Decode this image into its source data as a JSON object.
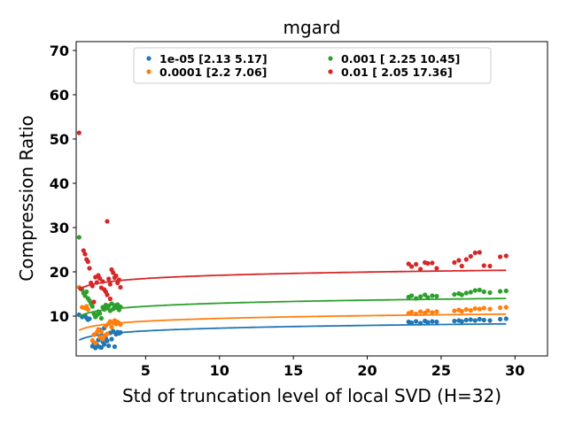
{
  "chart_data": {
    "type": "scatter",
    "title": "mgard",
    "xlabel": "Std of truncation level of local SVD (H=32)",
    "ylabel": "Compression Ratio",
    "xlim": [
      0.3,
      32.2
    ],
    "ylim": [
      1.0,
      72.0
    ],
    "xticks": [
      5,
      10,
      15,
      20,
      25,
      30
    ],
    "yticks": [
      10,
      20,
      30,
      40,
      50,
      60,
      70
    ],
    "grid": false,
    "legend_position": "top-center",
    "series": [
      {
        "name": "1e-05 [2.13 5.17]",
        "color": "#1f77b4",
        "fit": {
          "a": 5.2,
          "b": 0.9
        },
        "points": [
          [
            0.5,
            10.3
          ],
          [
            0.7,
            9.8
          ],
          [
            0.9,
            10.1
          ],
          [
            1.0,
            9.6
          ],
          [
            1.1,
            9.2
          ],
          [
            1.2,
            9.4
          ],
          [
            1.4,
            3.2
          ],
          [
            1.5,
            4.0
          ],
          [
            1.6,
            2.8
          ],
          [
            1.7,
            3.5
          ],
          [
            1.8,
            4.6
          ],
          [
            1.9,
            3.0
          ],
          [
            2.0,
            2.9
          ],
          [
            2.1,
            4.2
          ],
          [
            2.2,
            3.6
          ],
          [
            2.3,
            5.0
          ],
          [
            2.4,
            4.4
          ],
          [
            2.5,
            3.3
          ],
          [
            2.6,
            6.2
          ],
          [
            2.7,
            4.8
          ],
          [
            2.8,
            6.6
          ],
          [
            2.9,
            3.1
          ],
          [
            3.0,
            5.9
          ],
          [
            3.1,
            6.4
          ],
          [
            3.2,
            6.1
          ],
          [
            3.3,
            6.3
          ],
          [
            2.2,
            7.3
          ],
          [
            1.9,
            6.9
          ],
          [
            22.8,
            8.7
          ],
          [
            23.0,
            8.5
          ],
          [
            23.3,
            8.8
          ],
          [
            23.6,
            8.4
          ],
          [
            23.9,
            8.9
          ],
          [
            24.1,
            8.6
          ],
          [
            24.4,
            8.8
          ],
          [
            24.7,
            8.7
          ],
          [
            25.9,
            8.9
          ],
          [
            26.2,
            9.0
          ],
          [
            26.4,
            8.8
          ],
          [
            26.7,
            9.1
          ],
          [
            27.0,
            9.2
          ],
          [
            27.3,
            9.0
          ],
          [
            27.6,
            9.3
          ],
          [
            27.9,
            9.1
          ],
          [
            28.3,
            9.0
          ],
          [
            29.0,
            9.3
          ],
          [
            29.4,
            9.4
          ]
        ]
      },
      {
        "name": "0.0001 [2.2  7.06]",
        "color": "#ff7f0e",
        "fit": {
          "a": 7.4,
          "b": 0.9
        },
        "points": [
          [
            0.5,
            16.5
          ],
          [
            0.7,
            12.0
          ],
          [
            0.9,
            11.8
          ],
          [
            1.0,
            12.2
          ],
          [
            1.1,
            11.5
          ],
          [
            1.4,
            4.5
          ],
          [
            1.5,
            5.8
          ],
          [
            1.6,
            3.9
          ],
          [
            1.7,
            6.3
          ],
          [
            1.8,
            7.0
          ],
          [
            1.9,
            5.2
          ],
          [
            2.0,
            6.5
          ],
          [
            2.1,
            4.8
          ],
          [
            2.2,
            5.5
          ],
          [
            2.3,
            7.8
          ],
          [
            2.4,
            6.0
          ],
          [
            2.5,
            8.3
          ],
          [
            2.6,
            8.8
          ],
          [
            2.7,
            7.5
          ],
          [
            2.8,
            8.5
          ],
          [
            2.9,
            9.0
          ],
          [
            3.0,
            8.2
          ],
          [
            3.1,
            8.7
          ],
          [
            3.2,
            8.4
          ],
          [
            3.3,
            8.1
          ],
          [
            22.8,
            10.6
          ],
          [
            23.0,
            10.9
          ],
          [
            23.3,
            10.5
          ],
          [
            23.6,
            11.0
          ],
          [
            23.9,
            10.7
          ],
          [
            24.1,
            11.2
          ],
          [
            24.4,
            10.8
          ],
          [
            24.7,
            11.0
          ],
          [
            25.9,
            11.2
          ],
          [
            26.2,
            11.4
          ],
          [
            26.4,
            11.1
          ],
          [
            26.7,
            11.5
          ],
          [
            27.0,
            11.3
          ],
          [
            27.3,
            11.7
          ],
          [
            27.6,
            11.6
          ],
          [
            27.9,
            11.8
          ],
          [
            28.3,
            11.6
          ],
          [
            29.0,
            11.9
          ],
          [
            29.4,
            12.0
          ]
        ]
      },
      {
        "name": "0.001 [ 2.25 10.45]",
        "color": "#2ca02c",
        "fit": {
          "a": 10.6,
          "b": 1.0
        },
        "points": [
          [
            0.5,
            27.8
          ],
          [
            0.7,
            16.0
          ],
          [
            0.8,
            15.2
          ],
          [
            0.9,
            14.6
          ],
          [
            1.0,
            15.5
          ],
          [
            1.1,
            14.0
          ],
          [
            1.2,
            13.5
          ],
          [
            1.3,
            12.8
          ],
          [
            1.4,
            12.2
          ],
          [
            1.5,
            10.5
          ],
          [
            1.6,
            9.8
          ],
          [
            1.7,
            10.2
          ],
          [
            1.8,
            11.0
          ],
          [
            1.9,
            10.6
          ],
          [
            2.0,
            9.5
          ],
          [
            2.1,
            12.0
          ],
          [
            2.2,
            11.5
          ],
          [
            2.3,
            12.5
          ],
          [
            2.4,
            11.8
          ],
          [
            2.5,
            12.3
          ],
          [
            2.6,
            11.2
          ],
          [
            2.7,
            12.8
          ],
          [
            2.8,
            11.6
          ],
          [
            2.9,
            12.4
          ],
          [
            3.0,
            11.9
          ],
          [
            3.1,
            12.6
          ],
          [
            3.2,
            11.4
          ],
          [
            3.3,
            12.1
          ],
          [
            22.8,
            14.3
          ],
          [
            23.0,
            14.6
          ],
          [
            23.3,
            14.0
          ],
          [
            23.6,
            14.4
          ],
          [
            23.9,
            14.8
          ],
          [
            24.1,
            14.2
          ],
          [
            24.4,
            14.6
          ],
          [
            24.7,
            14.5
          ],
          [
            25.9,
            14.9
          ],
          [
            26.2,
            15.1
          ],
          [
            26.4,
            14.8
          ],
          [
            26.7,
            15.2
          ],
          [
            27.0,
            15.4
          ],
          [
            27.3,
            15.8
          ],
          [
            27.6,
            15.9
          ],
          [
            27.9,
            15.5
          ],
          [
            28.3,
            15.3
          ],
          [
            29.0,
            15.6
          ],
          [
            29.4,
            15.7
          ]
        ]
      },
      {
        "name": "0.01 [ 2.05 17.36]",
        "color": "#d62728",
        "fit": {
          "a": 16.8,
          "b": 1.05
        },
        "points": [
          [
            0.5,
            51.4
          ],
          [
            0.6,
            16.2
          ],
          [
            0.8,
            24.8
          ],
          [
            0.9,
            24.0
          ],
          [
            1.0,
            22.8
          ],
          [
            1.1,
            22.3
          ],
          [
            1.2,
            20.8
          ],
          [
            1.3,
            17.5
          ],
          [
            1.4,
            16.8
          ],
          [
            1.5,
            13.2
          ],
          [
            1.6,
            18.8
          ],
          [
            1.7,
            17.6
          ],
          [
            1.8,
            19.2
          ],
          [
            1.9,
            18.5
          ],
          [
            2.0,
            16.4
          ],
          [
            2.1,
            17.8
          ],
          [
            2.2,
            16.0
          ],
          [
            2.3,
            15.5
          ],
          [
            2.4,
            31.4
          ],
          [
            2.5,
            18.4
          ],
          [
            2.6,
            17.2
          ],
          [
            2.7,
            20.5
          ],
          [
            2.8,
            19.8
          ],
          [
            2.9,
            18.7
          ],
          [
            3.0,
            19.1
          ],
          [
            3.1,
            17.5
          ],
          [
            3.2,
            18.2
          ],
          [
            3.3,
            16.5
          ],
          [
            2.4,
            14.8
          ],
          [
            2.6,
            13.9
          ],
          [
            22.8,
            21.8
          ],
          [
            23.0,
            21.2
          ],
          [
            23.3,
            21.7
          ],
          [
            23.6,
            20.6
          ],
          [
            23.9,
            22.1
          ],
          [
            24.1,
            21.9
          ],
          [
            24.4,
            22.0
          ],
          [
            24.7,
            20.8
          ],
          [
            25.9,
            22.1
          ],
          [
            26.2,
            22.6
          ],
          [
            26.4,
            21.3
          ],
          [
            26.7,
            22.8
          ],
          [
            27.0,
            23.5
          ],
          [
            27.3,
            24.3
          ],
          [
            27.6,
            24.4
          ],
          [
            27.9,
            21.4
          ],
          [
            28.3,
            21.3
          ],
          [
            29.0,
            23.4
          ],
          [
            29.4,
            23.6
          ]
        ]
      }
    ]
  }
}
